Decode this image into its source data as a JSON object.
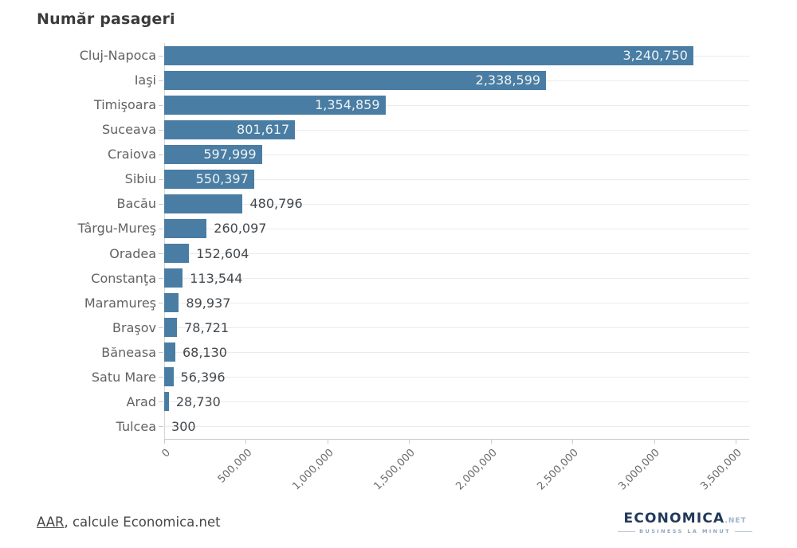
{
  "title": "Număr pasageri",
  "source": {
    "link_text": "AAR",
    "rest_text": ", calcule Economica.net"
  },
  "logo": {
    "name": "ECONOMICA",
    "suffix": ".NET",
    "tagline": "BUSINESS LA MINUT"
  },
  "colors": {
    "bar": "#4a7da3",
    "value_inside": "#eef3f6",
    "value_outside": "#43484d",
    "category_label": "#626262",
    "grid": "#ebebeb",
    "axis": "#c9c9c9",
    "tick_label": "#6b6b6b",
    "title": "#3b3b3b",
    "logo_navy": "#21395a",
    "logo_light": "#9fb3c8",
    "background": "#ffffff"
  },
  "chart_data": {
    "type": "bar",
    "orientation": "horizontal",
    "title": "Număr pasageri",
    "xlabel": "",
    "ylabel": "",
    "categories": [
      "Cluj-Napoca",
      "Iaşi",
      "Timişoara",
      "Suceava",
      "Craiova",
      "Sibiu",
      "Bacău",
      "Târgu-Mureş",
      "Oradea",
      "Constanţa",
      "Maramureş",
      "Braşov",
      "Băneasa",
      "Satu Mare",
      "Arad",
      "Tulcea"
    ],
    "values": [
      3240750,
      2338599,
      1354859,
      801617,
      597999,
      550397,
      480796,
      260097,
      152604,
      113544,
      89937,
      78721,
      68130,
      56396,
      28730,
      300
    ],
    "value_labels": [
      "3,240,750",
      "2,338,599",
      "1,354,859",
      "801,617",
      "597,999",
      "550,397",
      "480,796",
      "260,097",
      "152,604",
      "113,544",
      "89,937",
      "78,721",
      "68,130",
      "56,396",
      "28,730",
      "300"
    ],
    "value_label_inside": [
      true,
      true,
      true,
      true,
      true,
      true,
      false,
      false,
      false,
      false,
      false,
      false,
      false,
      false,
      false,
      false
    ],
    "xlim": [
      0,
      3500000
    ],
    "x_ticks": [
      0,
      500000,
      1000000,
      1500000,
      2000000,
      2500000,
      3000000,
      3500000
    ],
    "x_tick_labels": [
      "0",
      "500,000",
      "1,000,000",
      "1,500,000",
      "2,000,000",
      "2,500,000",
      "3,000,000",
      "3,500,000"
    ],
    "x_tick_rotation_deg": 45,
    "grid": "horizontal lines per category row",
    "legend": "none"
  }
}
